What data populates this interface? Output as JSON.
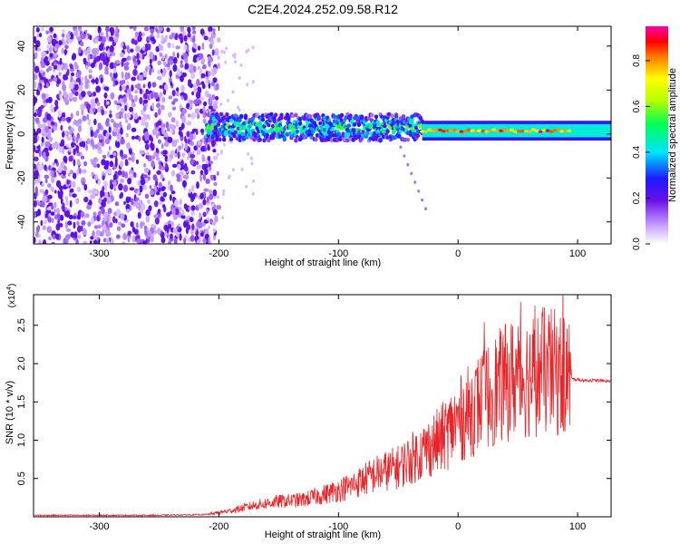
{
  "title": "C2E4.2024.252.09.58.R12",
  "colors": {
    "snr_line": "#e8262a",
    "spectrogram_low": "#7a1cf0",
    "spectrogram_high": "#ff0000",
    "axis": "#000000",
    "background": "#ffffff"
  },
  "chart_data": [
    {
      "type": "heatmap",
      "title": "C2E4.2024.252.09.58.R12",
      "xlabel": "Height of straight line (km)",
      "ylabel": "Frequency (Hz)",
      "xlim": [
        -355,
        128
      ],
      "ylim": [
        -50,
        49
      ],
      "xticks": [
        -300,
        -200,
        -100,
        0,
        100
      ],
      "yticks": [
        -40,
        -20,
        0,
        20,
        40
      ],
      "colorbar": {
        "label": "Normalized spectral amplitude",
        "range": [
          0.0,
          0.95
        ],
        "ticks": [
          0.0,
          0.2,
          0.4,
          0.6,
          0.8
        ],
        "colormap": "rainbow (white-violet-blue-cyan-green-yellow-red-magenta)"
      },
      "regions": [
        {
          "x_range": [
            -355,
            -210
          ],
          "freq_range": [
            -50,
            49
          ],
          "amplitude": 0.1,
          "description_level": "scattered low"
        },
        {
          "x_range": [
            -210,
            -30
          ],
          "freq_center": 3,
          "freq_halfwidth": 6,
          "amplitude": 0.45
        },
        {
          "x_range": [
            -30,
            128
          ],
          "freq_center": 1.5,
          "freq_halfwidth": 3,
          "amplitude": 0.85
        }
      ],
      "grid": false
    },
    {
      "type": "line",
      "xlabel": "Height of straight line (km)",
      "ylabel": "SNR (10 * v/v)",
      "y_multiplier": "(x10^4)",
      "xlim": [
        -355,
        128
      ],
      "ylim": [
        0,
        2.9
      ],
      "xticks": [
        -300,
        -200,
        -100,
        0,
        100
      ],
      "yticks": [
        0.5,
        1.0,
        1.5,
        2.0,
        2.5
      ],
      "series": [
        {
          "color": "#e8262a",
          "x": [
            -355,
            -300,
            -250,
            -210,
            -190,
            -170,
            -150,
            -130,
            -110,
            -90,
            -70,
            -50,
            -30,
            -15,
            0,
            15,
            30,
            45,
            60,
            75,
            90,
            95,
            105,
            115,
            128
          ],
          "y": [
            0.02,
            0.02,
            0.02,
            0.03,
            0.08,
            0.15,
            0.2,
            0.22,
            0.3,
            0.4,
            0.55,
            0.65,
            0.85,
            1.0,
            1.25,
            1.45,
            1.65,
            1.8,
            1.85,
            1.9,
            1.85,
            1.8,
            1.78,
            1.78,
            1.77
          ]
        }
      ],
      "grid": false
    }
  ]
}
